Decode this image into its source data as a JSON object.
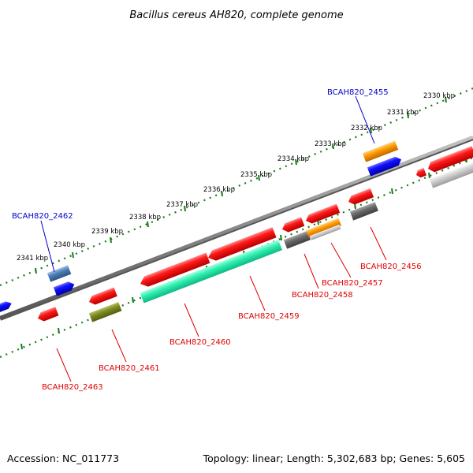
{
  "title": "Bacillus cereus AH820, complete genome",
  "footer": {
    "accession": "Accession: NC_011773",
    "stats": "Topology: linear; Length: 5,302,683 bp; Genes: 5,605"
  },
  "colors": {
    "backbone": "#888888",
    "tick": "#1a7a1a",
    "label_red": "#e00000",
    "label_blue": "#0000c8"
  },
  "scale_ticks": [
    "2330 kbp",
    "2331 kbp",
    "2332 kbp",
    "2333 kbp",
    "2334 kbp",
    "2335 kbp",
    "2336 kbp",
    "2337 kbp",
    "2338 kbp",
    "2339 kbp",
    "2340 kbp",
    "2341 kbp"
  ],
  "gene_labels": [
    {
      "name": "BCAH820_2455",
      "strand": "forward"
    },
    {
      "name": "BCAH820_2456",
      "strand": "reverse"
    },
    {
      "name": "BCAH820_2457",
      "strand": "reverse"
    },
    {
      "name": "BCAH820_2458",
      "strand": "reverse"
    },
    {
      "name": "BCAH820_2459",
      "strand": "reverse"
    },
    {
      "name": "BCAH820_2460",
      "strand": "reverse"
    },
    {
      "name": "BCAH820_2461",
      "strand": "reverse"
    },
    {
      "name": "BCAH820_2462",
      "strand": "forward"
    },
    {
      "name": "BCAH820_2463",
      "strand": "reverse"
    }
  ]
}
